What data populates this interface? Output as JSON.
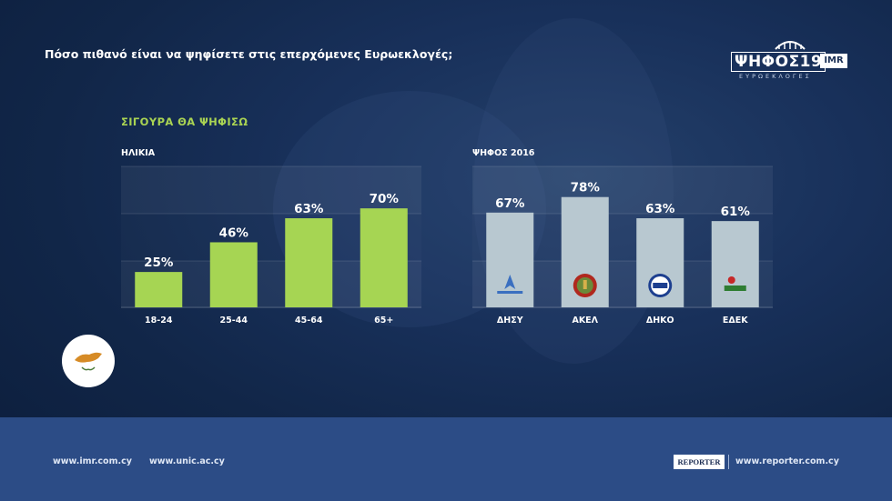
{
  "question": "Πόσο πιθανό είναι να ψηφίσετε στις επερχόμενες Ευρωεκλογές;",
  "section_title": "ΣΙΓΟΥΡΑ ΘΑ ΨΗΦΙΣΩ",
  "logo": {
    "main": "ΨΗΦΟΣ19",
    "partner": "IMR",
    "sub": "ΕΥΡΩΕΚΛΟΓΕΣ"
  },
  "footer": {
    "link1": "www.imr.com.cy",
    "link2": "www.unic.ac.cy",
    "reporter_badge": "REPORTER",
    "link3": "www.reporter.com.cy"
  },
  "colors": {
    "age_bar": "#a6d553",
    "party_bar": "#b8c8d0",
    "accent": "#a9d353"
  },
  "chart_data": [
    {
      "type": "bar",
      "title": "ΗΛΙΚΙΑ",
      "categories": [
        "18-24",
        "25-44",
        "45-64",
        "65+"
      ],
      "values": [
        25,
        46,
        63,
        70
      ],
      "value_labels": [
        "25%",
        "46%",
        "63%",
        "70%"
      ],
      "ylim": [
        0,
        100
      ],
      "grid": true
    },
    {
      "type": "bar",
      "title": "ΨΗΦΟΣ 2016",
      "categories": [
        "ΔΗΣΥ",
        "ΑΚΕΛ",
        "ΔΗΚΟ",
        "ΕΔΕΚ"
      ],
      "values": [
        67,
        78,
        63,
        61
      ],
      "value_labels": [
        "67%",
        "78%",
        "63%",
        "61%"
      ],
      "party_logos": [
        "disy-logo",
        "akel-logo",
        "diko-logo",
        "edek-logo"
      ],
      "ylim": [
        0,
        100
      ],
      "grid": true
    }
  ]
}
